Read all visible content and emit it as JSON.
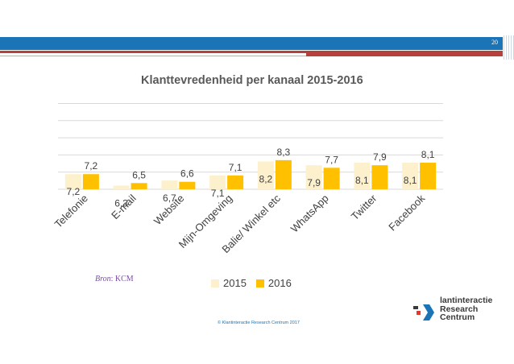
{
  "slide": {
    "page_number": "20",
    "source_label": "Bron",
    "source_value": ": KCM",
    "copyright": "© Klantinteractie Research Centrum 2017"
  },
  "logo": {
    "line1": "lantinteractie",
    "line2": "Research",
    "line3": "Centrum"
  },
  "colors": {
    "top_band": "#1a74b5",
    "accent_red": "#b5413f",
    "series_2015": "#fdf0cc",
    "series_2016": "#ffc000"
  },
  "chart_data": {
    "type": "bar",
    "title": "Klanttevredenheid per kanaal 2015-2016",
    "categories": [
      "Telefonie",
      "E-mail",
      "Website",
      "Mijn-Omgeving",
      "Balie/ Winkel etc",
      "WhatsApp",
      "Twitter",
      "Facebook"
    ],
    "series": [
      {
        "name": "2015",
        "values": [
          "7,2",
          "6,3",
          "6,7",
          "7,1",
          "8,2",
          "7,9",
          "8,1",
          "8,1"
        ]
      },
      {
        "name": "2016",
        "values": [
          "7,2",
          "6,5",
          "6,6",
          "7,1",
          "8,3",
          "7,7",
          "7,9",
          "8,1"
        ]
      }
    ],
    "ylim": [
      0,
      10
    ],
    "grid": true,
    "legend": "bottom-center"
  }
}
